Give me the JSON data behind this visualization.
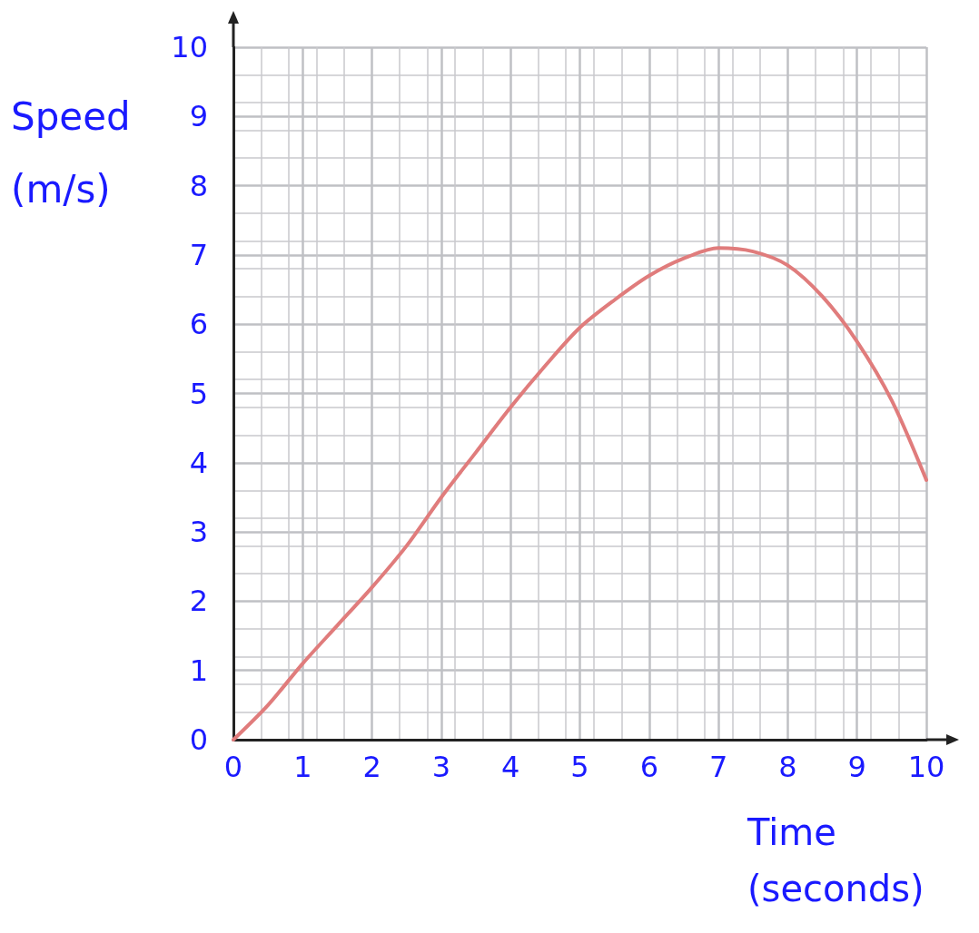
{
  "chart_data": {
    "type": "line",
    "xlabel": "Time (seconds)",
    "ylabel": "Speed (m/s)",
    "x": [
      0,
      0.5,
      1,
      1.5,
      2,
      2.5,
      3,
      3.5,
      4,
      4.5,
      5,
      5.5,
      6,
      6.5,
      7,
      7.5,
      8,
      8.5,
      9,
      9.5,
      10
    ],
    "series": [
      {
        "color": "#e07c7c",
        "values": [
          0,
          0.5,
          1.1,
          1.65,
          2.2,
          2.8,
          3.5,
          4.15,
          4.8,
          5.4,
          5.95,
          6.35,
          6.7,
          6.95,
          7.1,
          7.05,
          6.85,
          6.4,
          5.75,
          4.9,
          3.75
        ]
      }
    ],
    "xlim": [
      0,
      10
    ],
    "ylim": [
      0,
      10
    ],
    "xticks": [
      0,
      1,
      2,
      3,
      4,
      5,
      6,
      7,
      8,
      9,
      10
    ],
    "yticks": [
      0,
      1,
      2,
      3,
      4,
      5,
      6,
      7,
      8,
      9,
      10
    ],
    "grid": true,
    "marker": "none",
    "line_style": "solid"
  }
}
